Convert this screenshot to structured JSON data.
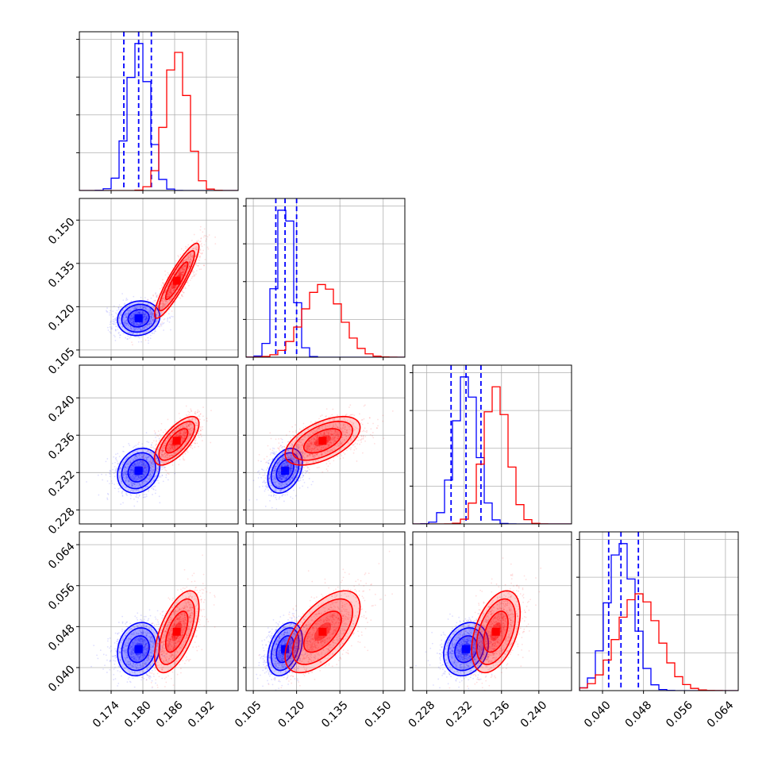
{
  "chart_data": {
    "type": "scatter",
    "title": "",
    "layout": "corner-plot",
    "grid": true,
    "series": [
      {
        "color": "#0000ff",
        "quantiles": [
          [
            0.1764,
            0.1792,
            0.1816
          ],
          [
            0.1128,
            0.116,
            0.12
          ],
          [
            0.2306,
            0.2322,
            0.2338
          ],
          [
            0.0412,
            0.0436,
            0.047
          ]
        ],
        "mean": [
          0.1792,
          0.116,
          0.2322,
          0.0436
        ],
        "sd": [
          0.002,
          0.003,
          0.0012,
          0.0026
        ],
        "correlation": [
          [
            0,
            1,
            0.1
          ],
          [
            0,
            2,
            0.2
          ],
          [
            0,
            3,
            0.15
          ],
          [
            1,
            2,
            0.35
          ],
          [
            1,
            3,
            0.35
          ],
          [
            2,
            3,
            0.2
          ]
        ]
      },
      {
        "color": "#ff0000",
        "mean": [
          0.1864,
          0.129,
          0.2354,
          0.047
        ],
        "sd": [
          0.0021,
          0.0065,
          0.0013,
          0.004
        ],
        "correlation": [
          [
            0,
            1,
            0.9
          ],
          [
            0,
            2,
            0.7
          ],
          [
            0,
            3,
            0.6
          ],
          [
            1,
            2,
            0.55
          ],
          [
            1,
            3,
            0.6
          ],
          [
            2,
            3,
            0.45
          ]
        ]
      }
    ],
    "parameters": [
      {
        "range": [
          0.168,
          0.198
        ],
        "ticks": [
          "0.174",
          "0.180",
          "0.186",
          "0.192"
        ]
      },
      {
        "range": [
          0.1025,
          0.1575
        ],
        "ticks": [
          "0.105",
          "0.120",
          "0.135",
          "0.150"
        ]
      },
      {
        "range": [
          0.2265,
          0.2435
        ],
        "ticks": [
          "0.228",
          "0.232",
          "0.236",
          "0.240"
        ]
      },
      {
        "range": [
          0.0355,
          0.0665
        ],
        "ticks": [
          "0.040",
          "0.048",
          "0.056",
          "0.064"
        ]
      }
    ]
  }
}
